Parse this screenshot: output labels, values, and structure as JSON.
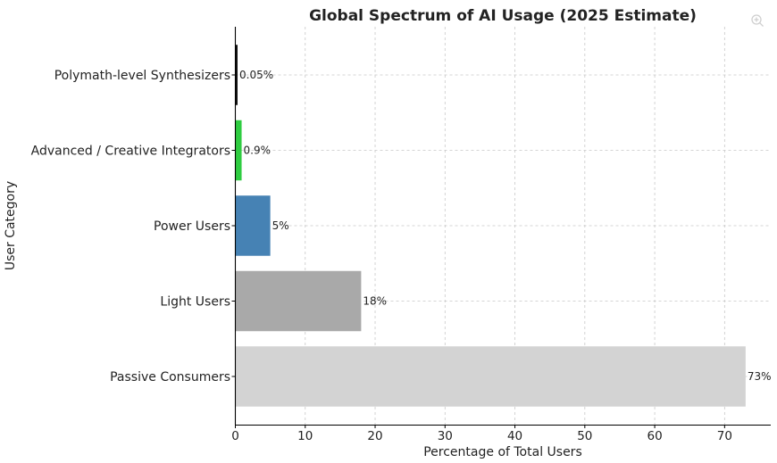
{
  "chart_data": {
    "type": "bar",
    "orientation": "horizontal",
    "title": "Global Spectrum of AI Usage (2025 Estimate)",
    "xlabel": "Percentage of Total Users",
    "ylabel": "User Category",
    "xlim": [
      0,
      76.6
    ],
    "xticks": [
      0,
      10,
      20,
      30,
      40,
      50,
      60,
      70
    ],
    "xtick_labels": [
      "0",
      "10",
      "20",
      "30",
      "40",
      "50",
      "60",
      "70"
    ],
    "grid": true,
    "categories": [
      "Passive Consumers",
      "Light Users",
      "Power Users",
      "Advanced / Creative Integrators",
      "Polymath-level Synthesizers"
    ],
    "values": [
      73,
      18,
      5,
      0.9,
      0.05
    ],
    "data_labels": [
      "73%",
      "18%",
      "5%",
      "0.9%",
      "0.05%"
    ],
    "colors": [
      "#d3d3d3",
      "#a9a9a9",
      "#4682b4",
      "#2ecc40",
      "#111111"
    ]
  },
  "toolbar": {
    "zoom_icon": "magnifier-plus-icon"
  }
}
